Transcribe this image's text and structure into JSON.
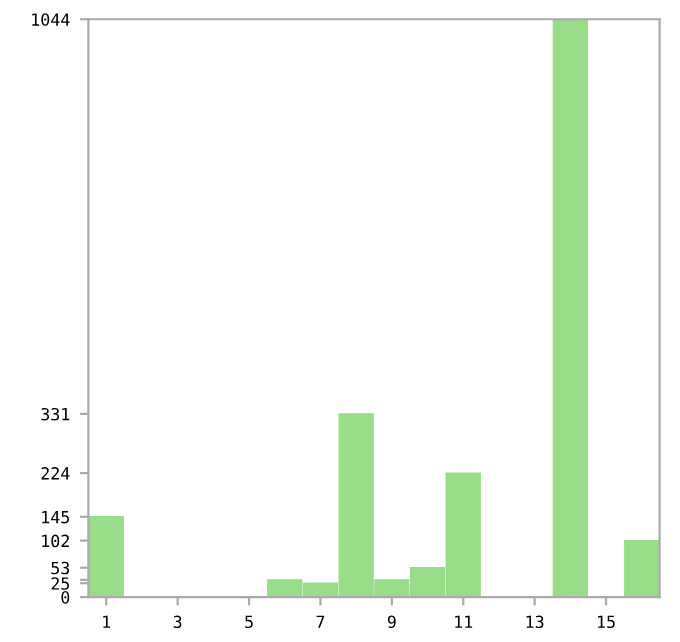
{
  "chart_data": {
    "type": "bar",
    "categories": [
      "1",
      null,
      "3",
      null,
      "5",
      null,
      "7",
      null,
      "9",
      null,
      "11",
      null,
      "13",
      null,
      "15",
      null
    ],
    "values": [
      145,
      0,
      0,
      0,
      0,
      31,
      25,
      331,
      31,
      53,
      224,
      0,
      0,
      1044,
      0,
      102
    ],
    "color": "#99dd88",
    "ylim": [
      0,
      1044
    ],
    "yticks": [
      0,
      25,
      {
        "value": 31,
        "label": null
      },
      53,
      102,
      145,
      224,
      331,
      1044
    ],
    "grid": false
  }
}
